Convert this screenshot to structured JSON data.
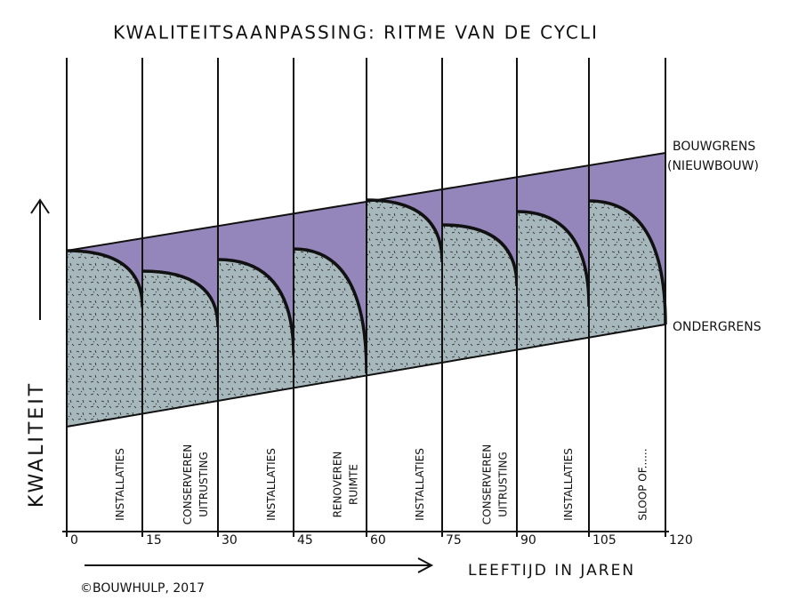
{
  "header": {
    "title": "KWALITEITSAANPASSING: RITME VAN DE CYCLI"
  },
  "axes": {
    "y_label": "KWALITEIT",
    "x_label": "LEEFTIJD IN JAREN",
    "x_ticks": [
      "0",
      "15",
      "30",
      "45",
      "60",
      "75",
      "90",
      "105",
      "120"
    ]
  },
  "limits": {
    "upper": [
      "BOUWGRENS",
      "(NIEUWBOUW)"
    ],
    "lower": "ONDERGRENS"
  },
  "interventions": [
    [
      "INSTALLATIES"
    ],
    [
      "CONSERVEREN",
      "UITRUSTING"
    ],
    [
      "INSTALLATIES"
    ],
    [
      "RENOVEREN",
      "RUIMTE"
    ],
    [
      "INSTALLATIES"
    ],
    [
      "CONSERVEREN",
      "UITRUSTING"
    ],
    [
      "INSTALLATIES"
    ],
    [
      "SLOOP OF......"
    ]
  ],
  "credit": "©BOUWHULP, 2017"
}
